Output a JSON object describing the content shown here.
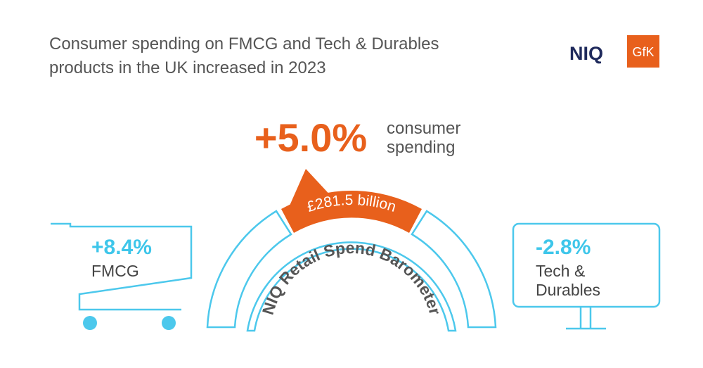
{
  "title": {
    "lines": [
      "Consumer spending on FMCG and Tech & Durables",
      "products in the UK increased in 2023"
    ]
  },
  "logos": {
    "niq": "NIQ",
    "gfk": "GfK"
  },
  "headline": {
    "value": "+5.0%",
    "label_lines": [
      "consumer",
      "spending"
    ]
  },
  "barometer": {
    "amount": "£281.5 billion",
    "label": "NIQ Retail Spend Barometer"
  },
  "fmcg": {
    "value": "+8.4%",
    "label": "FMCG"
  },
  "tech": {
    "value": "-2.8%",
    "label_lines": [
      "Tech &",
      "Durables"
    ]
  }
}
